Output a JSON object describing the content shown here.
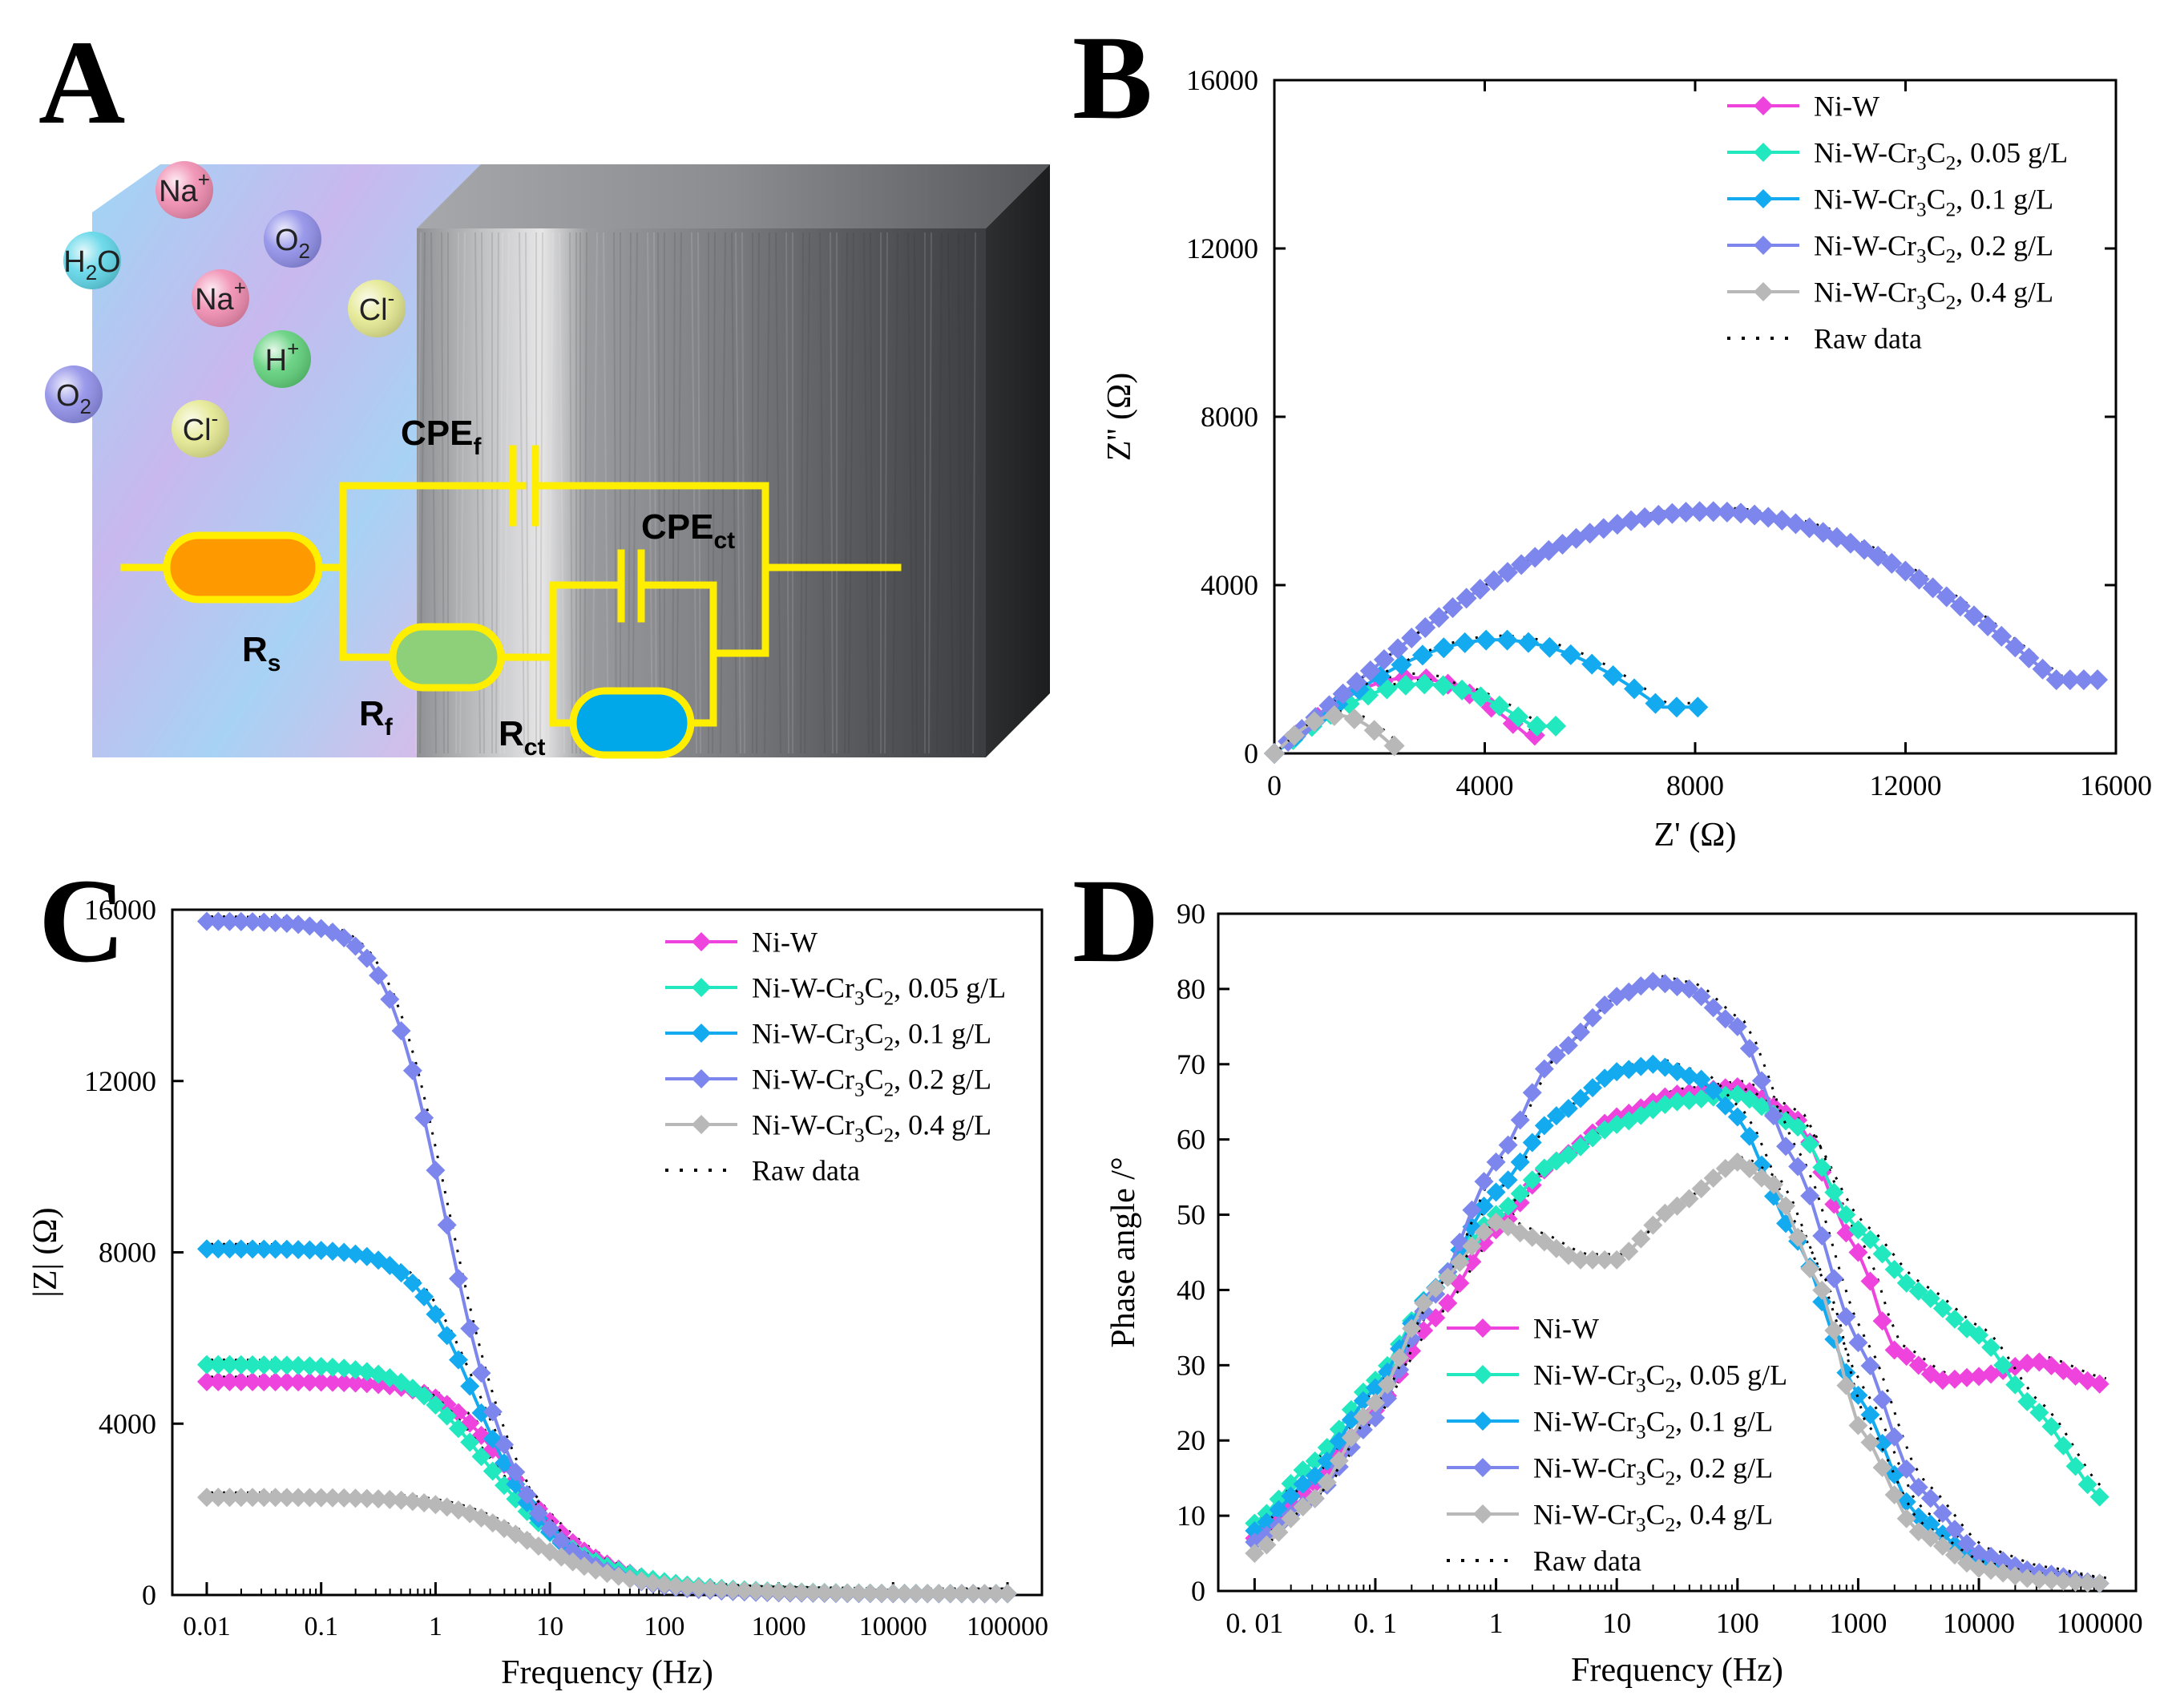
{
  "panels": {
    "a": {
      "letter": "A"
    },
    "b": {
      "letter": "B"
    },
    "c": {
      "letter": "C"
    },
    "d": {
      "letter": "D"
    }
  },
  "schematic": {
    "ions": [
      {
        "base": "Na",
        "sup": "+",
        "sub": "",
        "color": "#f08bb0"
      },
      {
        "base": "H",
        "sup": "",
        "sub": "2",
        "tail": "O",
        "color": "#5fd6e8"
      },
      {
        "base": "O",
        "sup": "",
        "sub": "2",
        "color": "#8f8ee8"
      },
      {
        "base": "Na",
        "sup": "+",
        "sub": "",
        "color": "#f08bb0"
      },
      {
        "base": "Cl",
        "sup": "-",
        "sub": "",
        "color": "#e4e890"
      },
      {
        "base": "H",
        "sup": "+",
        "sub": "",
        "color": "#5fd07a"
      },
      {
        "base": "O",
        "sup": "",
        "sub": "2",
        "color": "#8f8ee8"
      },
      {
        "base": "Cl",
        "sup": "-",
        "sub": "",
        "color": "#e4e890"
      }
    ],
    "labels": {
      "cpe_f": {
        "base": "CPE",
        "sub": "f"
      },
      "cpe_ct": {
        "base": "CPE",
        "sub": "ct"
      },
      "r_s": {
        "base": "R",
        "sub": "s"
      },
      "r_f": {
        "base": "R",
        "sub": "f"
      },
      "r_ct": {
        "base": "R",
        "sub": "ct"
      }
    },
    "colors": {
      "wire": "#ffee00",
      "rs": "#ff9900",
      "rf": "#8ecf7a",
      "rct": "#00a8ea"
    }
  },
  "series_styles": [
    {
      "color": "#ee44dd"
    },
    {
      "color": "#22e8c0"
    },
    {
      "color": "#14aaf0"
    },
    {
      "color": "#7c86ec"
    },
    {
      "color": "#b8b8b8"
    }
  ],
  "chart_data": [
    {
      "id": "b",
      "type": "scatter",
      "xlabel": "Z' (Ω)",
      "ylabel": "Z'' (Ω)",
      "xlim": [
        0,
        16000
      ],
      "ylim": [
        0,
        16000
      ],
      "xticks": [
        0,
        4000,
        8000,
        12000,
        16000
      ],
      "yticks": [
        0,
        4000,
        8000,
        12000,
        16000
      ],
      "legend": {
        "placement": "top-right",
        "entries": [
          {
            "base": "Ni-W",
            "rest": ""
          },
          {
            "base": "Ni-W-Cr",
            "sub1": "3",
            "mid": "C",
            "sub2": "2",
            "rest": ", 0.05 g/L"
          },
          {
            "base": "Ni-W-Cr",
            "sub1": "3",
            "mid": "C",
            "sub2": "2",
            "rest": ", 0.1 g/L"
          },
          {
            "base": "Ni-W-Cr",
            "sub1": "3",
            "mid": "C",
            "sub2": "2",
            "rest": ", 0.2 g/L"
          },
          {
            "base": "Ni-W-Cr",
            "sub1": "3",
            "mid": "C",
            "sub2": "2",
            "rest": ", 0.4 g/L"
          },
          {
            "base": "Raw data",
            "rest": "",
            "raw": true
          }
        ]
      },
      "series": [
        {
          "arc": [
            0,
            4950,
            1800,
            430
          ]
        },
        {
          "arc": [
            0,
            5350,
            1650,
            650
          ]
        },
        {
          "arc": [
            0,
            8050,
            2700,
            1100
          ]
        },
        {
          "arc": [
            0,
            15650,
            5750,
            1750
          ]
        },
        {
          "arc": [
            0,
            2280,
            900,
            180
          ]
        }
      ]
    },
    {
      "id": "c",
      "type": "scatter",
      "xlabel": "Frequency (Hz)",
      "ylabel": "|Z| (Ω)",
      "xscale": "log",
      "xlim": [
        0.005,
        200000
      ],
      "ylim": [
        0,
        16000
      ],
      "xticks": [
        "0.01",
        "0.1",
        "1",
        "10",
        "100",
        "1000",
        "10000",
        "100000"
      ],
      "yticks": [
        0,
        4000,
        8000,
        12000,
        16000
      ],
      "legend": {
        "placement": "top-right"
      },
      "series": [
        {
          "rs": 30,
          "r": 4950,
          "tau": 0.55,
          "n": 0.82
        },
        {
          "rs": 30,
          "r": 5350,
          "tau": 0.95,
          "n": 0.72
        },
        {
          "rs": 30,
          "r": 8050,
          "tau": 1.1,
          "n": 0.88
        },
        {
          "rs": 30,
          "r": 15700,
          "tau": 2.0,
          "n": 0.92
        },
        {
          "rs": 30,
          "r": 2250,
          "tau": 0.45,
          "n": 0.7
        }
      ]
    },
    {
      "id": "d",
      "type": "scatter",
      "xlabel": "Frequency (Hz)",
      "ylabel": "Phase angle /°",
      "xscale": "log",
      "xlim": [
        0.005,
        200000
      ],
      "ylim": [
        0,
        90
      ],
      "xticks": [
        "0. 01",
        "0. 1",
        "1",
        "10",
        "100",
        "1000",
        "10000",
        "100000"
      ],
      "yticks": [
        0,
        10,
        20,
        30,
        40,
        50,
        60,
        70,
        80,
        90
      ],
      "legend": {
        "placement": "bottom-left"
      },
      "series": [
        {
          "points": [
            [
              0.01,
              7
            ],
            [
              0.03,
              14
            ],
            [
              0.1,
              24
            ],
            [
              0.3,
              36
            ],
            [
              1,
              48
            ],
            [
              3,
              57
            ],
            [
              10,
              63
            ],
            [
              30,
              66
            ],
            [
              100,
              67
            ],
            [
              300,
              63
            ],
            [
              1000,
              45
            ],
            [
              2000,
              32
            ],
            [
              5000,
              28
            ],
            [
              10000,
              28.5
            ],
            [
              30000,
              30.5
            ],
            [
              100000,
              27.5
            ]
          ]
        },
        {
          "points": [
            [
              0.01,
              9
            ],
            [
              0.03,
              17
            ],
            [
              0.1,
              28
            ],
            [
              0.3,
              40
            ],
            [
              1,
              50
            ],
            [
              3,
              57
            ],
            [
              10,
              62
            ],
            [
              30,
              65
            ],
            [
              100,
              66
            ],
            [
              300,
              62
            ],
            [
              1000,
              48
            ],
            [
              3000,
              40
            ],
            [
              10000,
              34
            ],
            [
              30000,
              24
            ],
            [
              100000,
              12.5
            ]
          ]
        },
        {
          "points": [
            [
              0.01,
              8
            ],
            [
              0.03,
              15
            ],
            [
              0.1,
              27
            ],
            [
              0.3,
              40
            ],
            [
              1,
              53
            ],
            [
              3,
              63
            ],
            [
              10,
              69
            ],
            [
              20,
              70
            ],
            [
              50,
              68
            ],
            [
              100,
              63
            ],
            [
              300,
              47
            ],
            [
              1000,
              26
            ],
            [
              3000,
              10
            ],
            [
              10000,
              4
            ],
            [
              30000,
              2
            ],
            [
              100000,
              1
            ]
          ]
        },
        {
          "points": [
            [
              0.01,
              6.5
            ],
            [
              0.03,
              12
            ],
            [
              0.1,
              23
            ],
            [
              0.3,
              39
            ],
            [
              1,
              57
            ],
            [
              3,
              71
            ],
            [
              10,
              79
            ],
            [
              20,
              81
            ],
            [
              40,
              80
            ],
            [
              100,
              75
            ],
            [
              300,
              57
            ],
            [
              1000,
              33
            ],
            [
              3000,
              14
            ],
            [
              10000,
              5
            ],
            [
              30000,
              2.5
            ],
            [
              100000,
              1
            ]
          ]
        },
        {
          "points": [
            [
              0.01,
              5
            ],
            [
              0.03,
              12
            ],
            [
              0.1,
              25
            ],
            [
              0.3,
              40
            ],
            [
              1,
              49
            ],
            [
              2,
              47
            ],
            [
              5,
              44
            ],
            [
              10,
              44
            ],
            [
              30,
              51
            ],
            [
              100,
              57
            ],
            [
              200,
              54
            ],
            [
              500,
              40
            ],
            [
              1000,
              22
            ],
            [
              3000,
              8
            ],
            [
              10000,
              3
            ],
            [
              30000,
              1.5
            ],
            [
              100000,
              1
            ]
          ]
        }
      ]
    }
  ]
}
